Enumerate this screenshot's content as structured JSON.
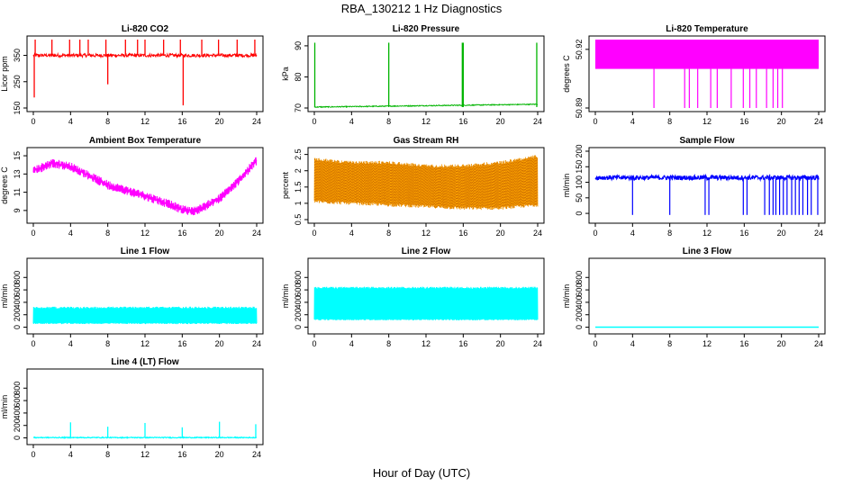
{
  "figure": {
    "title": "RBA_130212  1 Hz Diagnostics",
    "xlabel": "Hour of Day (UTC)"
  },
  "chart_data": [
    {
      "type": "line",
      "title": "Li-820 CO2",
      "xlabel": "",
      "ylabel": "Licor ppm",
      "color": "#ff0000",
      "xlim": [
        0,
        24
      ],
      "ylim": [
        150,
        410
      ],
      "xticks": [
        0,
        4,
        8,
        12,
        16,
        20,
        24
      ],
      "yticks": [
        150,
        250,
        350
      ],
      "series": [
        {
          "name": "CO2",
          "baseline": 350,
          "noise": 8,
          "spikes_up": [
            0.2,
            2,
            3.9,
            5,
            5.9,
            7.8,
            9.9,
            11.2,
            12,
            14,
            15.8,
            18.1,
            19.9,
            21.9,
            23.8
          ],
          "spikes_down": [
            0.1,
            8,
            16.1
          ],
          "spike_max": 410,
          "spike_min": 160
        }
      ]
    },
    {
      "type": "line",
      "title": "Li-820 Pressure",
      "xlabel": "",
      "ylabel": "kPa",
      "color": "#00b400",
      "xlim": [
        0,
        24
      ],
      "ylim": [
        70,
        92
      ],
      "xticks": [
        0,
        4,
        8,
        12,
        16,
        20,
        24
      ],
      "yticks": [
        70,
        80,
        90
      ],
      "series": [
        {
          "name": "Pressure",
          "start": 70.3,
          "end": 71.2,
          "spikes_up": [
            0.05,
            8,
            15.9,
            16,
            23.9
          ],
          "spike_max": 91
        }
      ]
    },
    {
      "type": "line",
      "title": "Li-820 Temperature",
      "xlabel": "",
      "ylabel": "degrees C",
      "color": "#ff00ff",
      "xlim": [
        0,
        24
      ],
      "ylim": [
        50.89,
        50.925
      ],
      "xticks": [
        0,
        4,
        8,
        12,
        16,
        20,
        24
      ],
      "yticks": [
        50.89,
        50.92
      ],
      "series": [
        {
          "name": "Temperature",
          "upper": 50.925,
          "lower": 50.91,
          "drops": [
            6.3,
            9.6,
            10.1,
            11,
            12.4,
            13.1,
            14.6,
            15.9,
            16.6,
            17.3,
            18.4,
            19.1,
            19.6,
            20.1
          ],
          "drop_min": 50.89
        }
      ]
    },
    {
      "type": "line",
      "title": "Ambient Box Temperature",
      "xlabel": "",
      "ylabel": "degrees C",
      "color": "#ff00ff",
      "xlim": [
        0,
        24
      ],
      "ylim": [
        8,
        15.5
      ],
      "xticks": [
        0,
        4,
        8,
        12,
        16,
        20,
        24
      ],
      "yticks": [
        9,
        11,
        13,
        15
      ],
      "series": [
        {
          "name": "Box Temp",
          "x": [
            0,
            2,
            4,
            6,
            8,
            10,
            12,
            14,
            16,
            17,
            18,
            20,
            22,
            24
          ],
          "y": [
            13.3,
            14.2,
            13.8,
            12.8,
            11.8,
            11.2,
            10.6,
            9.9,
            9.1,
            8.9,
            9.2,
            10.3,
            12.2,
            14.5
          ],
          "band": 0.5
        }
      ]
    },
    {
      "type": "line",
      "title": "Gas Stream RH",
      "xlabel": "",
      "ylabel": "percent",
      "color": "#ffa500",
      "xlim": [
        0,
        24
      ],
      "ylim": [
        0.5,
        2.6
      ],
      "xticks": [
        0,
        4,
        8,
        12,
        16,
        20,
        24
      ],
      "yticks": [
        0.5,
        1.0,
        1.5,
        2.0,
        2.5
      ],
      "series": [
        {
          "name": "RH",
          "x": [
            0,
            4,
            8,
            12,
            16,
            20,
            24
          ],
          "lo": [
            1.0,
            0.95,
            0.9,
            0.85,
            0.8,
            0.8,
            0.9
          ],
          "hi": [
            2.4,
            2.3,
            2.3,
            2.2,
            2.2,
            2.3,
            2.5
          ]
        }
      ]
    },
    {
      "type": "line",
      "title": "Sample Flow",
      "xlabel": "",
      "ylabel": "ml/min",
      "color": "#0000ff",
      "xlim": [
        0,
        24
      ],
      "ylim": [
        -20,
        200
      ],
      "xticks": [
        0,
        4,
        8,
        12,
        16,
        20,
        24
      ],
      "yticks": [
        0,
        50,
        100,
        150,
        200
      ],
      "series": [
        {
          "name": "Sample Flow",
          "baseline": 115,
          "noise": 15,
          "drops": [
            4,
            8,
            11.8,
            12.2,
            15.9,
            16.3,
            18.2,
            18.7,
            19.1,
            19.4,
            19.8,
            20.2,
            20.6,
            21.1,
            21.5,
            21.9,
            22.3,
            22.8,
            23.2,
            23.9
          ],
          "drop_min": -5
        }
      ]
    },
    {
      "type": "line",
      "title": "Line 1 Flow",
      "xlabel": "",
      "ylabel": "ml/min",
      "color": "#00ffff",
      "xlim": [
        0,
        24
      ],
      "ylim": [
        -50,
        1050
      ],
      "xticks": [
        0,
        4,
        8,
        12,
        16,
        20,
        24
      ],
      "yticks": [
        0,
        200,
        400,
        600,
        800
      ],
      "series": [
        {
          "name": "Line 1",
          "lo": 50,
          "hi": 330
        }
      ]
    },
    {
      "type": "line",
      "title": "Line 2 Flow",
      "xlabel": "",
      "ylabel": "ml/min",
      "color": "#00ffff",
      "xlim": [
        0,
        24
      ],
      "ylim": [
        -50,
        1050
      ],
      "xticks": [
        0,
        4,
        8,
        12,
        16,
        20,
        24
      ],
      "yticks": [
        0,
        200,
        400,
        600,
        800
      ],
      "series": [
        {
          "name": "Line 2",
          "lo": 110,
          "hi": 650
        }
      ]
    },
    {
      "type": "line",
      "title": "Line 3 Flow",
      "xlabel": "",
      "ylabel": "ml/min",
      "color": "#00ffff",
      "xlim": [
        0,
        24
      ],
      "ylim": [
        -50,
        1050
      ],
      "xticks": [
        0,
        4,
        8,
        12,
        16,
        20,
        24
      ],
      "yticks": [
        0,
        200,
        400,
        600,
        800
      ],
      "series": [
        {
          "name": "Line 3",
          "value": 0
        }
      ]
    },
    {
      "type": "line",
      "title": "Line 4 (LT) Flow",
      "xlabel": "",
      "ylabel": "ml/min",
      "color": "#00ffff",
      "xlim": [
        0,
        24
      ],
      "ylim": [
        -50,
        1050
      ],
      "xticks": [
        0,
        4,
        8,
        12,
        16,
        20,
        24
      ],
      "yticks": [
        0,
        200,
        400,
        600,
        800
      ],
      "series": [
        {
          "name": "Line 4",
          "baseline": 5,
          "spikes": [
            4,
            8,
            12,
            16,
            20,
            24
          ],
          "spike_heights": [
            250,
            180,
            240,
            170,
            260,
            220
          ]
        }
      ]
    }
  ]
}
